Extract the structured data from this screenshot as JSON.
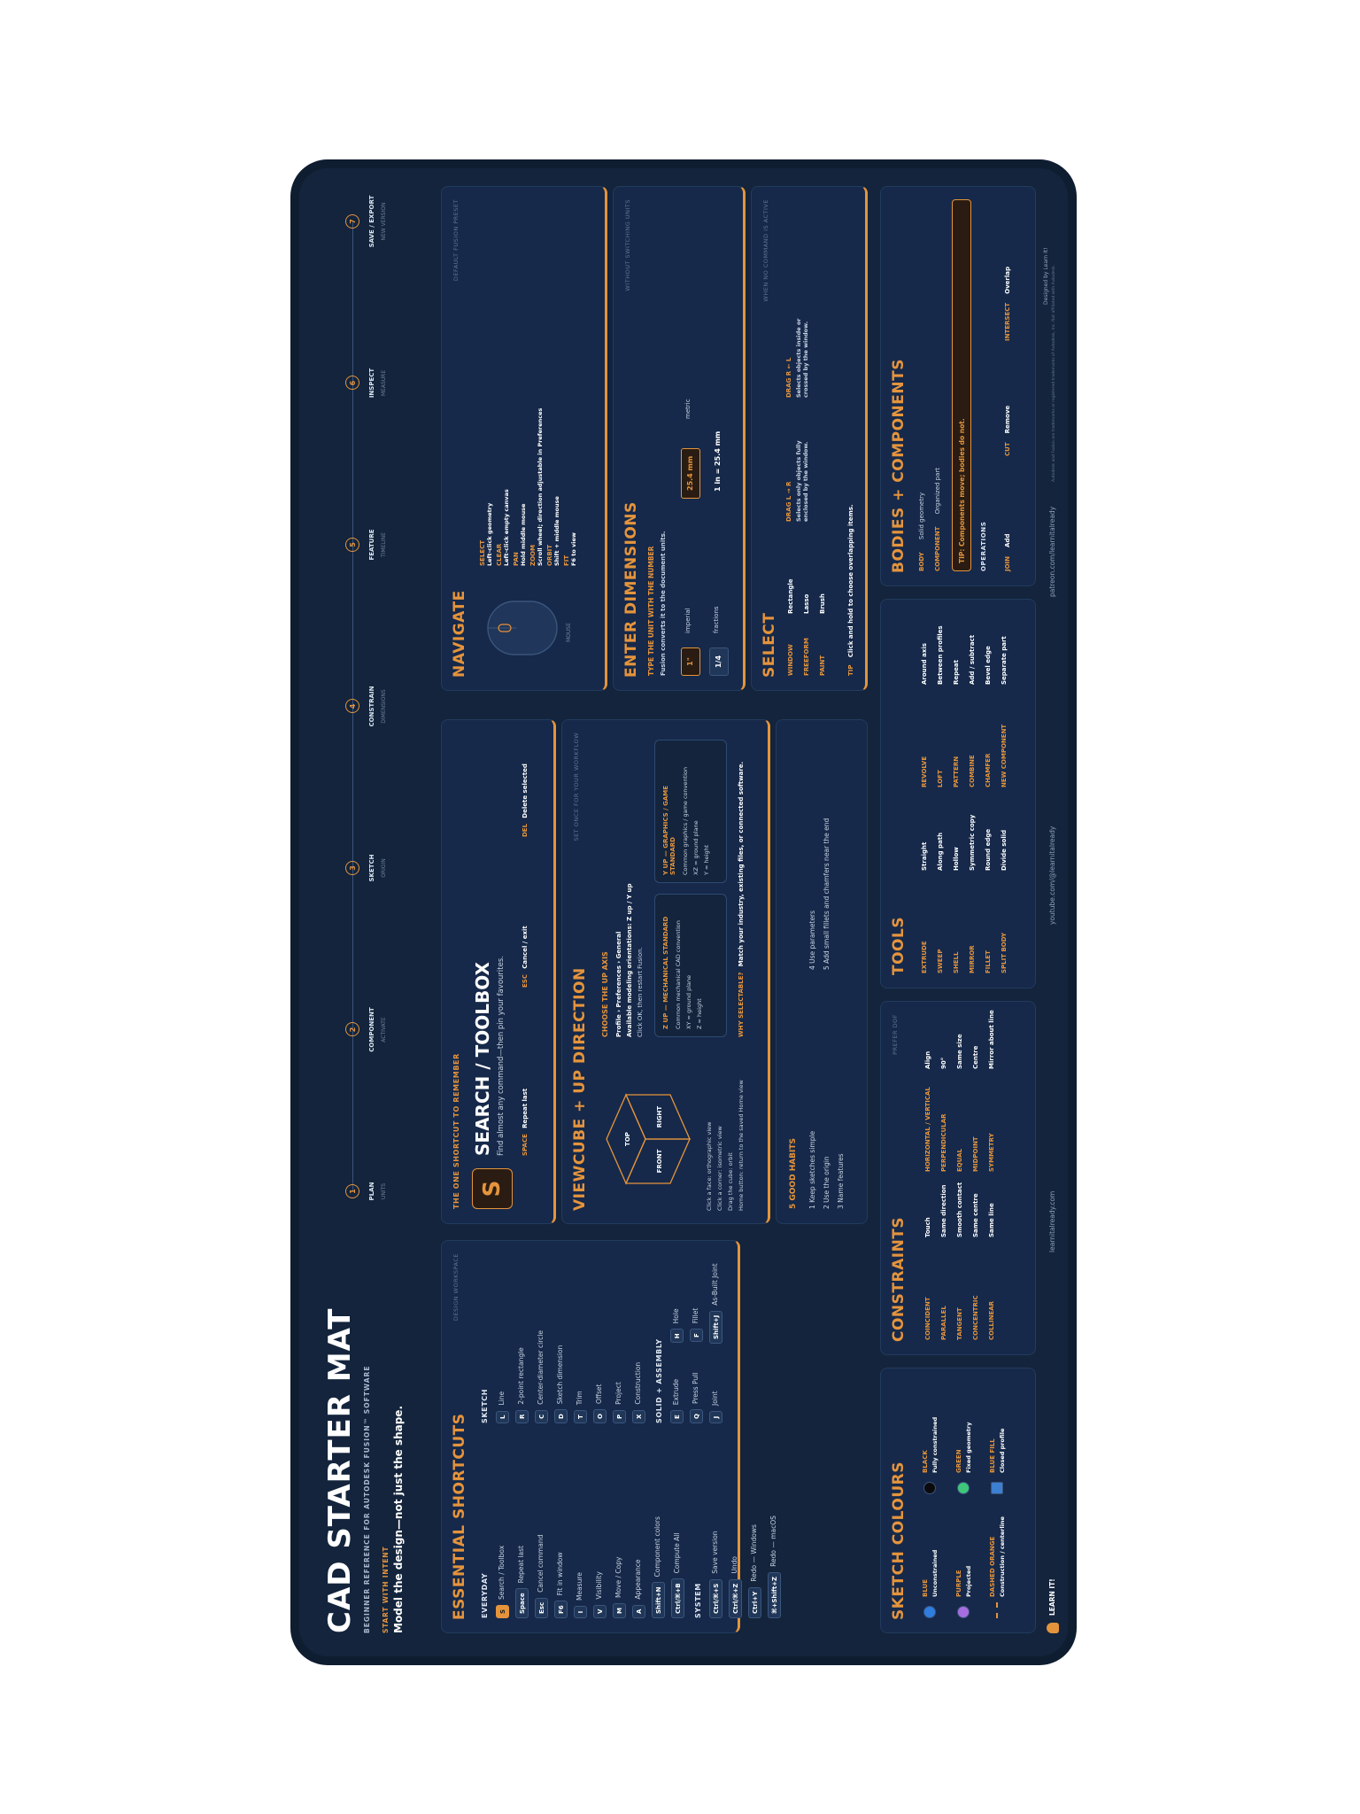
{
  "header": {
    "title": "CAD STARTER MAT",
    "subtitle": "BEGINNER REFERENCE FOR AUTODESK FUSION™ SOFTWARE",
    "intent_label": "START WITH INTENT",
    "intent_text": "Model the design—not just the shape."
  },
  "workflow": {
    "steps": [
      {
        "num": "1",
        "label": "PLAN",
        "sub": "UNITS"
      },
      {
        "num": "2",
        "label": "COMPONENT",
        "sub": "ACTIVATE"
      },
      {
        "num": "3",
        "label": "SKETCH",
        "sub": "ORIGIN"
      },
      {
        "num": "4",
        "label": "CONSTRAIN",
        "sub": "DIMENSIONS"
      },
      {
        "num": "5",
        "label": "FEATURE",
        "sub": "TIMELINE"
      },
      {
        "num": "6",
        "label": "INSPECT",
        "sub": "MEASURE"
      },
      {
        "num": "7",
        "label": "SAVE / EXPORT",
        "sub": "NEW VERSION"
      }
    ]
  },
  "shortcuts": {
    "title": "ESSENTIAL SHORTCUTS",
    "tag": "DESIGN WORKSPACE",
    "everyday_heading": "EVERYDAY",
    "everyday": [
      {
        "key": "S",
        "label": "Search / Toolbox"
      },
      {
        "key": "Space",
        "label": "Repeat last"
      },
      {
        "key": "Esc",
        "label": "Cancel command"
      },
      {
        "key": "F6",
        "label": "Fit in window"
      },
      {
        "key": "I",
        "label": "Measure"
      },
      {
        "key": "V",
        "label": "Visibility"
      },
      {
        "key": "M",
        "label": "Move / Copy"
      },
      {
        "key": "A",
        "label": "Appearance"
      },
      {
        "key": "Shift+N",
        "label": "Component colors"
      },
      {
        "key": "Ctrl/⌘+B",
        "label": "Compute All"
      }
    ],
    "system_heading": "SYSTEM",
    "system": [
      {
        "key": "Ctrl/⌘+S",
        "label": "Save version"
      },
      {
        "key": "Ctrl/⌘+Z",
        "label": "Undo"
      },
      {
        "key": "Ctrl+Y",
        "label": "Redo — Windows"
      },
      {
        "key": "⌘+Shift+Z",
        "label": "Redo — macOS"
      }
    ],
    "sketch_heading": "SKETCH",
    "sketch": [
      {
        "key": "L",
        "label": "Line"
      },
      {
        "key": "R",
        "label": "2-point rectangle"
      },
      {
        "key": "C",
        "label": "Center-diameter circle"
      },
      {
        "key": "D",
        "label": "Sketch dimension"
      },
      {
        "key": "T",
        "label": "Trim"
      },
      {
        "key": "O",
        "label": "Offset"
      },
      {
        "key": "P",
        "label": "Project"
      },
      {
        "key": "X",
        "label": "Construction"
      }
    ],
    "solid_heading": "SOLID + ASSEMBLY",
    "solid": [
      {
        "key": "E",
        "label": "Extrude",
        "key2": "H",
        "label2": "Hole"
      },
      {
        "key": "Q",
        "label": "Press Pull",
        "key2": "F",
        "label2": "Fillet"
      },
      {
        "key": "J",
        "label": "Joint",
        "key2": "Shift+J",
        "label2": "As-Built Joint"
      }
    ]
  },
  "search": {
    "remember_label": "THE ONE SHORTCUT TO REMEMBER",
    "key": "S",
    "title": "SEARCH / TOOLBOX",
    "desc": "Find almost any command—then pin your favourites.",
    "space_key": "SPACE",
    "space_label": "Repeat last",
    "esc_key": "ESC",
    "esc_label": "Cancel / exit",
    "del_key": "DEL",
    "del_label": "Delete selected"
  },
  "viewcube": {
    "title": "VIEWCUBE + UP DIRECTION",
    "tag": "SET ONCE FOR YOUR WORKFLOW",
    "faces": {
      "top": "TOP",
      "front": "FRONT",
      "right": "RIGHT"
    },
    "notes": [
      "Click a face: orthographic view",
      "Click a corner: isometric view",
      "Drag the cube: orbit",
      "Home button: return to the saved Home view"
    ],
    "axis_heading": "CHOOSE THE UP AXIS",
    "axis_lines": [
      "Profile › Preferences › General",
      "Available modeling orientations: Z up / Y up",
      "Click OK, then restart Fusion."
    ],
    "z_title": "Z UP — MECHANICAL STANDARD",
    "z_lines": [
      "Common mechanical CAD convention",
      "XY = ground plane",
      "Z = height"
    ],
    "y_title": "Y UP — GRAPHICS / GAME STANDARD",
    "y_lines": [
      "Common graphics / game convention",
      "XZ = ground plane",
      "Y = height"
    ],
    "why_label": "WHY SELECTABLE?",
    "why_text": "Match your industry, existing files, or connected software."
  },
  "habits": {
    "title": "5 GOOD HABITS",
    "items": [
      "1 Keep sketches simple",
      "2 Use the origin",
      "3 Name features",
      "4 Use parameters",
      "5 Add small fillets and chamfers near the end"
    ]
  },
  "navigate": {
    "title": "NAVIGATE",
    "tag": "DEFAULT FUSION PRESET",
    "mouse_label": "MOUSE",
    "items": [
      {
        "name": "SELECT",
        "desc": "Left-click geometry"
      },
      {
        "name": "CLEAR",
        "desc": "Left-click empty canvas"
      },
      {
        "name": "PAN",
        "desc": "Hold middle mouse"
      },
      {
        "name": "ZOOM",
        "desc": "Scroll wheel; direction adjustable in Preferences"
      },
      {
        "name": "ORBIT",
        "desc": "Shift + middle mouse"
      },
      {
        "name": "FIT",
        "desc": "F6 to view"
      }
    ]
  },
  "dimensions": {
    "title": "ENTER DIMENSIONS",
    "tag": "WITHOUT SWITCHING UNITS",
    "heading": "TYPE THE UNIT WITH THE NUMBER",
    "sub": "Fusion converts it to the document units.",
    "rows": [
      {
        "value": "1\"",
        "label": "imperial",
        "value2": "25.4 mm",
        "label2": "metric"
      },
      {
        "value": "1/4",
        "label": "fractions",
        "value2": "1 in = 25.4 mm",
        "label2": ""
      }
    ]
  },
  "select": {
    "title": "SELECT",
    "tag": "WHEN NO COMMAND IS ACTIVE",
    "modes": [
      {
        "name": "WINDOW",
        "value": "Rectangle"
      },
      {
        "name": "FREEFORM",
        "value": "Lasso"
      },
      {
        "name": "PAINT",
        "value": "Brush"
      }
    ],
    "drag_lr_title": "DRAG L → R",
    "drag_lr_text": "Selects only objects fully enclosed by the window.",
    "drag_rl_title": "DRAG R ← L",
    "drag_rl_text": "Selects objects inside or crossed by the window.",
    "tip_label": "TIP",
    "tip_text": "Click and hold to choose overlapping items."
  },
  "colours": {
    "title": "SKETCH COLOURS",
    "items": [
      {
        "name": "BLUE",
        "desc": "Unconstrained",
        "color": "#2f7de1"
      },
      {
        "name": "BLACK",
        "desc": "Fully constrained",
        "color": "#0b0b0b"
      },
      {
        "name": "PURPLE",
        "desc": "Projected",
        "color": "#a66de0"
      },
      {
        "name": "GREEN",
        "desc": "Fixed geometry",
        "color": "#3ec77a"
      },
      {
        "name": "DASHED ORANGE",
        "desc": "Construction / centerline",
        "color": "#e5943c"
      },
      {
        "name": "BLUE FILL",
        "desc": "Closed profile",
        "color": "#3d7fd0"
      }
    ]
  },
  "constraints": {
    "title": "CONSTRAINTS",
    "tag": "PREFER DOF",
    "col1": [
      {
        "name": "COINCIDENT",
        "desc": "Touch"
      },
      {
        "name": "PARALLEL",
        "desc": "Same direction"
      },
      {
        "name": "TANGENT",
        "desc": "Smooth contact"
      },
      {
        "name": "CONCENTRIC",
        "desc": "Same centre"
      },
      {
        "name": "COLLINEAR",
        "desc": "Same line"
      }
    ],
    "col2": [
      {
        "name": "HORIZONTAL / VERTICAL",
        "desc": "Align"
      },
      {
        "name": "PERPENDICULAR",
        "desc": "90°"
      },
      {
        "name": "EQUAL",
        "desc": "Same size"
      },
      {
        "name": "MIDPOINT",
        "desc": "Centre"
      },
      {
        "name": "SYMMETRY",
        "desc": "Mirror about line"
      }
    ]
  },
  "tools": {
    "title": "TOOLS",
    "col1": [
      {
        "name": "EXTRUDE",
        "desc": "Straight"
      },
      {
        "name": "SWEEP",
        "desc": "Along path"
      },
      {
        "name": "SHELL",
        "desc": "Hollow"
      },
      {
        "name": "MIRROR",
        "desc": "Symmetric copy"
      },
      {
        "name": "FILLET",
        "desc": "Round edge"
      },
      {
        "name": "SPLIT BODY",
        "desc": "Divide solid"
      }
    ],
    "col2": [
      {
        "name": "REVOLVE",
        "desc": "Around axis"
      },
      {
        "name": "LOFT",
        "desc": "Between profiles"
      },
      {
        "name": "PATTERN",
        "desc": "Repeat"
      },
      {
        "name": "COMBINE",
        "desc": "Add / subtract"
      },
      {
        "name": "CHAMFER",
        "desc": "Bevel edge"
      },
      {
        "name": "NEW COMPONENT",
        "desc": "Separate part"
      }
    ]
  },
  "bodies": {
    "title": "BODIES + COMPONENTS",
    "body_name": "BODY",
    "body_desc": "Solid geometry",
    "comp_name": "COMPONENT",
    "comp_desc": "Organized part",
    "tip": "TIP: Components move; bodies do not.",
    "ops_heading": "OPERATIONS",
    "ops": [
      {
        "name": "JOIN",
        "desc": "Add"
      },
      {
        "name": "CUT",
        "desc": "Remove"
      },
      {
        "name": "INTERSECT",
        "desc": "Overlap"
      }
    ]
  },
  "footer": {
    "learn": "LEARN IT!",
    "site": "learnitalready.com",
    "youtube": "youtube.com/@learnitalready",
    "patreon": "patreon.com/learnitalready",
    "designed": "Designed by Learn It!",
    "legal": "Autodesk and Fusion are trademarks or registered trademarks of Autodesk, Inc. Not affiliated with Autodesk."
  }
}
